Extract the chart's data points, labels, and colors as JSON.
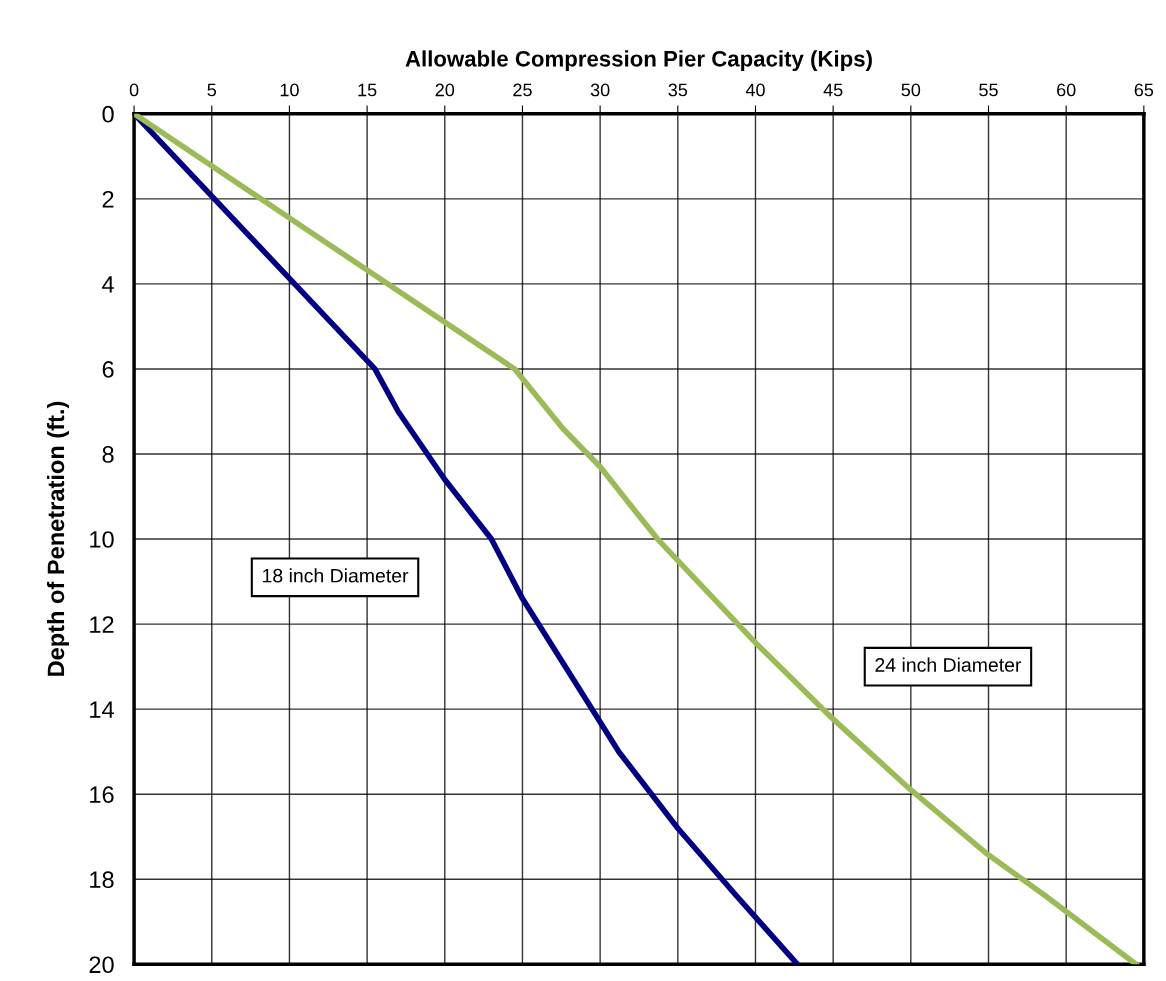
{
  "chart_data": {
    "type": "line",
    "xlabel": "Allowable Compression Pier Capacity (Kips)",
    "ylabel": "Depth of Penetration (ft.)",
    "xlim": [
      0,
      65
    ],
    "xticks": [
      0,
      5,
      10,
      15,
      20,
      25,
      30,
      35,
      40,
      45,
      50,
      55,
      60,
      65
    ],
    "ylim": [
      20,
      0
    ],
    "yticks": [
      0,
      2,
      4,
      6,
      8,
      10,
      12,
      14,
      16,
      18,
      20
    ],
    "grid": true,
    "legend": false,
    "marker": "none",
    "line_style": "solid",
    "series": [
      {
        "color": "#000080",
        "x": [
          0,
          15.5,
          17,
          20,
          23,
          25,
          30,
          31.2,
          35,
          38.8,
          42.7
        ],
        "values": [
          0,
          6,
          7,
          8.6,
          10,
          11.4,
          14.3,
          15,
          16.8,
          18.4,
          20
        ]
      },
      {
        "color": "#9bbb59",
        "x": [
          0,
          10,
          24.5,
          27.6,
          30,
          32.6,
          33.7,
          39.9,
          44.9,
          50,
          54.9,
          58.7,
          64.5
        ],
        "values": [
          0,
          2.45,
          6,
          7.4,
          8.3,
          9.5,
          10,
          12.4,
          14.2,
          15.9,
          17.4,
          18.4,
          20
        ]
      }
    ],
    "annotations": [
      "18 inch Diameter",
      "24 inch Diameter"
    ]
  }
}
